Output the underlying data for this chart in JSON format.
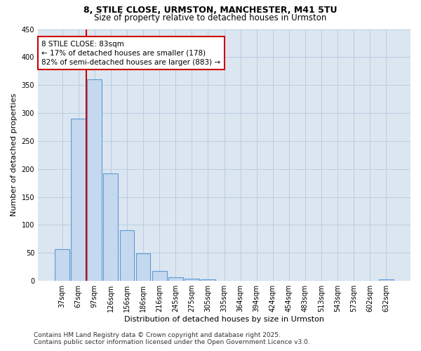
{
  "title_line1": "8, STILE CLOSE, URMSTON, MANCHESTER, M41 5TU",
  "title_line2": "Size of property relative to detached houses in Urmston",
  "xlabel": "Distribution of detached houses by size in Urmston",
  "ylabel": "Number of detached properties",
  "bar_color": "#c5d8ef",
  "bar_edge_color": "#5b9bd5",
  "background_color": "#ffffff",
  "plot_bg_color": "#dce6f1",
  "grid_color": "#b8cde0",
  "categories": [
    "37sqm",
    "67sqm",
    "97sqm",
    "126sqm",
    "156sqm",
    "186sqm",
    "216sqm",
    "245sqm",
    "275sqm",
    "305sqm",
    "335sqm",
    "364sqm",
    "394sqm",
    "424sqm",
    "454sqm",
    "483sqm",
    "513sqm",
    "543sqm",
    "573sqm",
    "602sqm",
    "632sqm"
  ],
  "values": [
    57,
    290,
    360,
    192,
    90,
    49,
    18,
    7,
    4,
    2,
    0,
    0,
    0,
    0,
    0,
    0,
    0,
    0,
    0,
    0,
    3
  ],
  "red_line_x": 1.5,
  "annotation_text_line1": "8 STILE CLOSE: 83sqm",
  "annotation_text_line2": "← 17% of detached houses are smaller (178)",
  "annotation_text_line3": "82% of semi-detached houses are larger (883) →",
  "annotation_box_color": "#ffffff",
  "annotation_box_edge": "#cc0000",
  "red_line_color": "#cc0000",
  "ylim": [
    0,
    450
  ],
  "yticks": [
    0,
    50,
    100,
    150,
    200,
    250,
    300,
    350,
    400,
    450
  ],
  "footer_line1": "Contains HM Land Registry data © Crown copyright and database right 2025.",
  "footer_line2": "Contains public sector information licensed under the Open Government Licence v3.0.",
  "title_fontsize": 9,
  "subtitle_fontsize": 8.5,
  "axis_label_fontsize": 8,
  "tick_fontsize": 7,
  "annotation_fontsize": 7.5,
  "footer_fontsize": 6.5
}
